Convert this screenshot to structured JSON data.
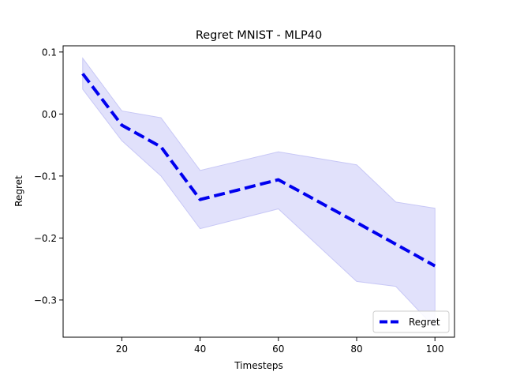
{
  "chart_data": {
    "type": "line",
    "title": "Regret MNIST - MLP40",
    "xlabel": "Timesteps",
    "ylabel": "Regret",
    "xlim": [
      5,
      105
    ],
    "ylim": [
      -0.36,
      0.11
    ],
    "xticks": [
      20,
      40,
      60,
      80,
      100
    ],
    "yticks": [
      0.1,
      0.0,
      -0.1,
      -0.2,
      -0.3
    ],
    "ytick_labels": [
      "0.1",
      "0.0",
      "−0.1",
      "−0.2",
      "−0.3"
    ],
    "grid": false,
    "legend_position": "lower-right",
    "series": [
      {
        "name": "Regret",
        "color": "#0000ee",
        "band_color": "#e1e1fb",
        "line_style": "dashed",
        "x": [
          10,
          20,
          30,
          40,
          60,
          80,
          90,
          100
        ],
        "y": [
          0.065,
          -0.018,
          -0.053,
          -0.138,
          -0.106,
          -0.175,
          -0.21,
          -0.245
        ],
        "lower": [
          0.04,
          -0.043,
          -0.1,
          -0.185,
          -0.153,
          -0.27,
          -0.278,
          -0.345
        ],
        "upper": [
          0.09,
          0.005,
          -0.006,
          -0.091,
          -0.061,
          -0.082,
          -0.142,
          -0.152
        ]
      }
    ]
  }
}
